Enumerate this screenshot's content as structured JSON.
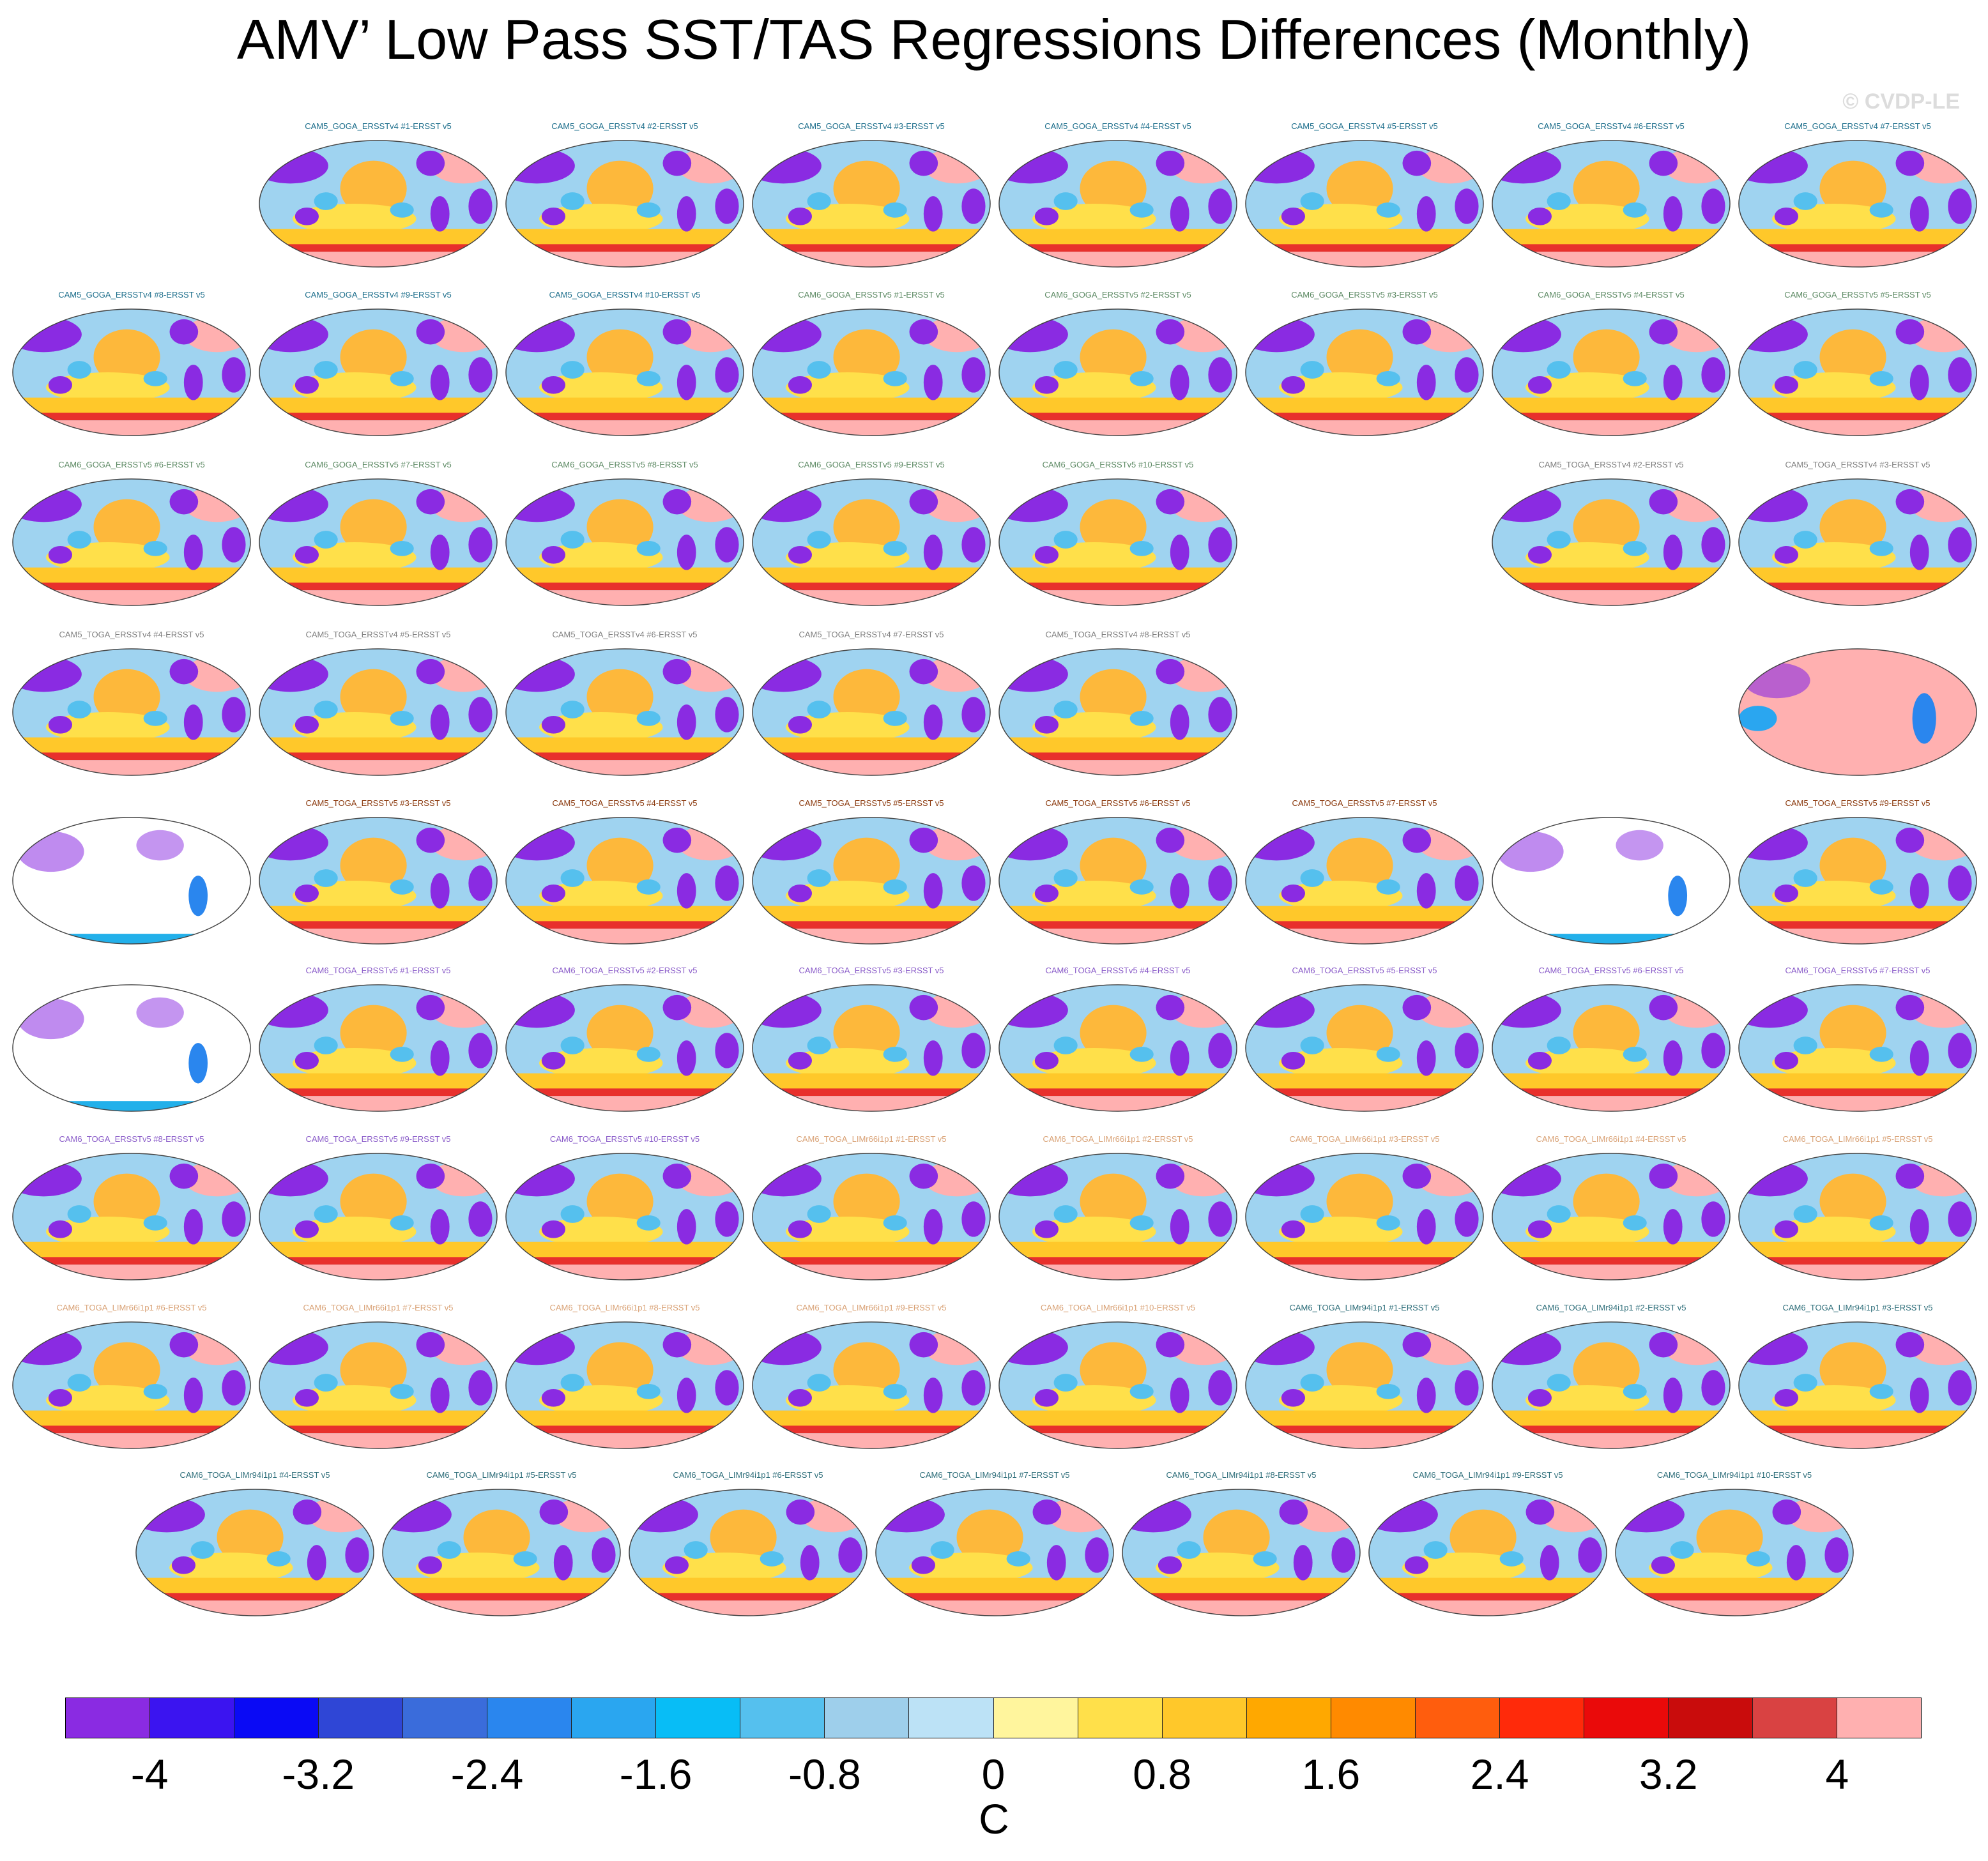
{
  "title": "AMV’ Low Pass SST/TAS Regressions Differences (Monthly)",
  "watermark": "© CVDP-LE",
  "colors": {
    "cam5_goga_v4": "#1e6f8c",
    "cam6_goga_v5": "#5d8a64",
    "cam5_toga_v4": "#7f7f7f",
    "cam5_toga_v5": "#8b3a0e",
    "cam6_toga_v5": "#8a5cc9",
    "cam6_toga_limr66": "#d9a276",
    "cam6_toga_limr94": "#2e6e7a",
    "land_masked": "#8a2be2",
    "ocean_cool": "#9fd3f0",
    "ocean_warm": "#fdb83b",
    "south_hot": "#e8302c",
    "high_fill": "#ffb0b0"
  },
  "chart_data": {
    "type": "heatmap",
    "title": "AMV’ Low Pass SST/TAS Regressions Differences (Monthly)",
    "projection": "global map panels",
    "colorbar": {
      "unit": "C",
      "tick_labels": [
        "-4",
        "-3.2",
        "-2.4",
        "-1.6",
        "-0.8",
        "0",
        "0.8",
        "1.6",
        "2.4",
        "3.2",
        "4"
      ],
      "range": [
        -4.4,
        4.4
      ],
      "colors": [
        "#8a2be2",
        "#3b14f0",
        "#0a0af5",
        "#2f46d6",
        "#3a6cdb",
        "#2a86ee",
        "#2aa6f0",
        "#08bdf6",
        "#55c0ee",
        "#9ecfeb",
        "#bce2f6",
        "#fff59d",
        "#ffe04a",
        "#ffc82a",
        "#ffa800",
        "#ff8a00",
        "#ff5d0d",
        "#ff2a0a",
        "#ea0a0a",
        "#c90c0c",
        "#d94242",
        "#ffb0b0"
      ]
    },
    "rows": [
      {
        "panels": [
          null,
          {
            "label": "CAM5_GOGA_ERSSTv4 #1-ERSST v5",
            "group": "cam5_goga_v4",
            "style": "normal"
          },
          {
            "label": "CAM5_GOGA_ERSSTv4 #2-ERSST v5",
            "group": "cam5_goga_v4",
            "style": "normal"
          },
          {
            "label": "CAM5_GOGA_ERSSTv4 #3-ERSST v5",
            "group": "cam5_goga_v4",
            "style": "normal"
          },
          {
            "label": "CAM5_GOGA_ERSSTv4 #4-ERSST v5",
            "group": "cam5_goga_v4",
            "style": "normal"
          },
          {
            "label": "CAM5_GOGA_ERSSTv4 #5-ERSST v5",
            "group": "cam5_goga_v4",
            "style": "normal"
          },
          {
            "label": "CAM5_GOGA_ERSSTv4 #6-ERSST v5",
            "group": "cam5_goga_v4",
            "style": "normal"
          },
          {
            "label": "CAM5_GOGA_ERSSTv4 #7-ERSST v5",
            "group": "cam5_goga_v4",
            "style": "normal"
          }
        ]
      },
      {
        "panels": [
          {
            "label": "CAM5_GOGA_ERSSTv4 #8-ERSST v5",
            "group": "cam5_goga_v4",
            "style": "normal"
          },
          {
            "label": "CAM5_GOGA_ERSSTv4 #9-ERSST v5",
            "group": "cam5_goga_v4",
            "style": "normal"
          },
          {
            "label": "CAM5_GOGA_ERSSTv4 #10-ERSST v5",
            "group": "cam5_goga_v4",
            "style": "normal"
          },
          {
            "label": "CAM6_GOGA_ERSSTv5 #1-ERSST v5",
            "group": "cam6_goga_v5",
            "style": "normal"
          },
          {
            "label": "CAM6_GOGA_ERSSTv5 #2-ERSST v5",
            "group": "cam6_goga_v5",
            "style": "normal"
          },
          {
            "label": "CAM6_GOGA_ERSSTv5 #3-ERSST v5",
            "group": "cam6_goga_v5",
            "style": "normal"
          },
          {
            "label": "CAM6_GOGA_ERSSTv5 #4-ERSST v5",
            "group": "cam6_goga_v5",
            "style": "normal"
          },
          {
            "label": "CAM6_GOGA_ERSSTv5 #5-ERSST v5",
            "group": "cam6_goga_v5",
            "style": "normal"
          }
        ]
      },
      {
        "panels": [
          {
            "label": "CAM6_GOGA_ERSSTv5 #6-ERSST v5",
            "group": "cam6_goga_v5",
            "style": "normal"
          },
          {
            "label": "CAM6_GOGA_ERSSTv5 #7-ERSST v5",
            "group": "cam6_goga_v5",
            "style": "normal"
          },
          {
            "label": "CAM6_GOGA_ERSSTv5 #8-ERSST v5",
            "group": "cam6_goga_v5",
            "style": "normal"
          },
          {
            "label": "CAM6_GOGA_ERSSTv5 #9-ERSST v5",
            "group": "cam6_goga_v5",
            "style": "normal"
          },
          {
            "label": "CAM6_GOGA_ERSSTv5 #10-ERSST v5",
            "group": "cam6_goga_v5",
            "style": "normal"
          },
          null,
          {
            "label": "CAM5_TOGA_ERSSTv4 #2-ERSST v5",
            "group": "cam5_toga_v4",
            "style": "normal"
          },
          {
            "label": "CAM5_TOGA_ERSSTv4 #3-ERSST v5",
            "group": "cam5_toga_v4",
            "style": "normal"
          }
        ]
      },
      {
        "panels": [
          {
            "label": "CAM5_TOGA_ERSSTv4 #4-ERSST v5",
            "group": "cam5_toga_v4",
            "style": "normal"
          },
          {
            "label": "CAM5_TOGA_ERSSTv4 #5-ERSST v5",
            "group": "cam5_toga_v4",
            "style": "normal"
          },
          {
            "label": "CAM5_TOGA_ERSSTv4 #6-ERSST v5",
            "group": "cam5_toga_v4",
            "style": "normal"
          },
          {
            "label": "CAM5_TOGA_ERSSTv4 #7-ERSST v5",
            "group": "cam5_toga_v4",
            "style": "normal"
          },
          {
            "label": "CAM5_TOGA_ERSSTv4 #8-ERSST v5",
            "group": "cam5_toga_v4",
            "style": "normal"
          },
          null,
          null,
          {
            "label": "",
            "group": "cam5_toga_v4",
            "style": "pink"
          }
        ]
      },
      {
        "panels": [
          {
            "label": "",
            "group": "cam5_toga_v5",
            "style": "white"
          },
          {
            "label": "CAM5_TOGA_ERSSTv5 #3-ERSST v5",
            "group": "cam5_toga_v5",
            "style": "normal"
          },
          {
            "label": "CAM5_TOGA_ERSSTv5 #4-ERSST v5",
            "group": "cam5_toga_v5",
            "style": "normal"
          },
          {
            "label": "CAM5_TOGA_ERSSTv5 #5-ERSST v5",
            "group": "cam5_toga_v5",
            "style": "normal"
          },
          {
            "label": "CAM5_TOGA_ERSSTv5 #6-ERSST v5",
            "group": "cam5_toga_v5",
            "style": "normal"
          },
          {
            "label": "CAM5_TOGA_ERSSTv5 #7-ERSST v5",
            "group": "cam5_toga_v5",
            "style": "normal"
          },
          {
            "label": "",
            "group": "cam5_toga_v5",
            "style": "white"
          },
          {
            "label": "CAM5_TOGA_ERSSTv5 #9-ERSST v5",
            "group": "cam5_toga_v5",
            "style": "normal"
          }
        ]
      },
      {
        "panels": [
          {
            "label": "",
            "group": "cam6_toga_v5",
            "style": "white"
          },
          {
            "label": "CAM6_TOGA_ERSSTv5 #1-ERSST v5",
            "group": "cam6_toga_v5",
            "style": "normal"
          },
          {
            "label": "CAM6_TOGA_ERSSTv5 #2-ERSST v5",
            "group": "cam6_toga_v5",
            "style": "normal"
          },
          {
            "label": "CAM6_TOGA_ERSSTv5 #3-ERSST v5",
            "group": "cam6_toga_v5",
            "style": "normal"
          },
          {
            "label": "CAM6_TOGA_ERSSTv5 #4-ERSST v5",
            "group": "cam6_toga_v5",
            "style": "normal"
          },
          {
            "label": "CAM6_TOGA_ERSSTv5 #5-ERSST v5",
            "group": "cam6_toga_v5",
            "style": "normal"
          },
          {
            "label": "CAM6_TOGA_ERSSTv5 #6-ERSST v5",
            "group": "cam6_toga_v5",
            "style": "normal"
          },
          {
            "label": "CAM6_TOGA_ERSSTv5 #7-ERSST v5",
            "group": "cam6_toga_v5",
            "style": "normal"
          }
        ]
      },
      {
        "panels": [
          {
            "label": "CAM6_TOGA_ERSSTv5 #8-ERSST v5",
            "group": "cam6_toga_v5",
            "style": "normal"
          },
          {
            "label": "CAM6_TOGA_ERSSTv5 #9-ERSST v5",
            "group": "cam6_toga_v5",
            "style": "normal"
          },
          {
            "label": "CAM6_TOGA_ERSSTv5 #10-ERSST v5",
            "group": "cam6_toga_v5",
            "style": "normal"
          },
          {
            "label": "CAM6_TOGA_LIMr66i1p1 #1-ERSST v5",
            "group": "cam6_toga_limr66",
            "style": "normal"
          },
          {
            "label": "CAM6_TOGA_LIMr66i1p1 #2-ERSST v5",
            "group": "cam6_toga_limr66",
            "style": "normal"
          },
          {
            "label": "CAM6_TOGA_LIMr66i1p1 #3-ERSST v5",
            "group": "cam6_toga_limr66",
            "style": "normal"
          },
          {
            "label": "CAM6_TOGA_LIMr66i1p1 #4-ERSST v5",
            "group": "cam6_toga_limr66",
            "style": "normal"
          },
          {
            "label": "CAM6_TOGA_LIMr66i1p1 #5-ERSST v5",
            "group": "cam6_toga_limr66",
            "style": "normal"
          }
        ]
      },
      {
        "panels": [
          {
            "label": "CAM6_TOGA_LIMr66i1p1 #6-ERSST v5",
            "group": "cam6_toga_limr66",
            "style": "normal"
          },
          {
            "label": "CAM6_TOGA_LIMr66i1p1 #7-ERSST v5",
            "group": "cam6_toga_limr66",
            "style": "normal"
          },
          {
            "label": "CAM6_TOGA_LIMr66i1p1 #8-ERSST v5",
            "group": "cam6_toga_limr66",
            "style": "normal"
          },
          {
            "label": "CAM6_TOGA_LIMr66i1p1 #9-ERSST v5",
            "group": "cam6_toga_limr66",
            "style": "normal"
          },
          {
            "label": "CAM6_TOGA_LIMr66i1p1 #10-ERSST v5",
            "group": "cam6_toga_limr66",
            "style": "normal"
          },
          {
            "label": "CAM6_TOGA_LIMr94i1p1 #1-ERSST v5",
            "group": "cam6_toga_limr94",
            "style": "normal"
          },
          {
            "label": "CAM6_TOGA_LIMr94i1p1 #2-ERSST v5",
            "group": "cam6_toga_limr94",
            "style": "normal"
          },
          {
            "label": "CAM6_TOGA_LIMr94i1p1 #3-ERSST v5",
            "group": "cam6_toga_limr94",
            "style": "normal"
          }
        ]
      },
      {
        "offset_half": true,
        "panels": [
          {
            "label": "CAM6_TOGA_LIMr94i1p1 #4-ERSST v5",
            "group": "cam6_toga_limr94",
            "style": "normal"
          },
          {
            "label": "CAM6_TOGA_LIMr94i1p1 #5-ERSST v5",
            "group": "cam6_toga_limr94",
            "style": "normal"
          },
          {
            "label": "CAM6_TOGA_LIMr94i1p1 #6-ERSST v5",
            "group": "cam6_toga_limr94",
            "style": "normal"
          },
          {
            "label": "CAM6_TOGA_LIMr94i1p1 #7-ERSST v5",
            "group": "cam6_toga_limr94",
            "style": "normal"
          },
          {
            "label": "CAM6_TOGA_LIMr94i1p1 #8-ERSST v5",
            "group": "cam6_toga_limr94",
            "style": "normal"
          },
          {
            "label": "CAM6_TOGA_LIMr94i1p1 #9-ERSST v5",
            "group": "cam6_toga_limr94",
            "style": "normal"
          },
          {
            "label": "CAM6_TOGA_LIMr94i1p1 #10-ERSST v5",
            "group": "cam6_toga_limr94",
            "style": "normal"
          }
        ]
      }
    ]
  }
}
